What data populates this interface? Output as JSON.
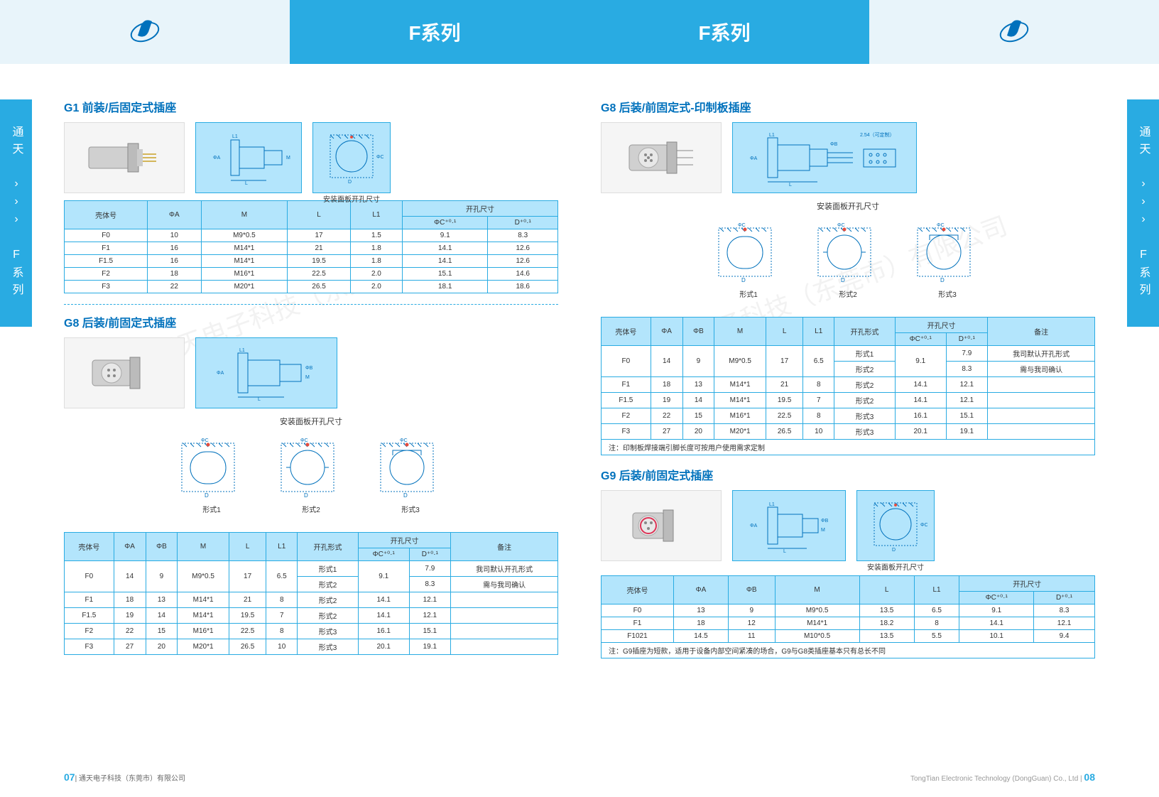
{
  "header": {
    "title_left": "F系列",
    "title_right": "F系列"
  },
  "side_tab": "通天 ››› F系列",
  "footer": {
    "left_page": "07",
    "left_company": "通天电子科技（东莞市）有限公司",
    "right_company": "TongTian Electronic Technology (DongGuan) Co., Ltd",
    "right_page": "08"
  },
  "watermark": "通天电子科技（东莞市）有限公司",
  "colors": {
    "primary": "#29abe2",
    "light": "#b3e5fc",
    "dark": "#0071bc"
  },
  "sections": {
    "g1": {
      "title": "G1 前装/后固定式插座",
      "panel_label": "安装面板开孔尺寸",
      "headers": [
        "壳体号",
        "ΦA",
        "M",
        "L",
        "L1",
        "开孔尺寸"
      ],
      "sub_headers": [
        "ΦC⁺⁰·¹",
        "D⁺⁰·¹"
      ],
      "rows": [
        [
          "F0",
          "10",
          "M9*0.5",
          "17",
          "1.5",
          "9.1",
          "8.3"
        ],
        [
          "F1",
          "16",
          "M14*1",
          "21",
          "1.8",
          "14.1",
          "12.6"
        ],
        [
          "F1.5",
          "16",
          "M14*1",
          "19.5",
          "1.8",
          "14.1",
          "12.6"
        ],
        [
          "F2",
          "18",
          "M16*1",
          "22.5",
          "2.0",
          "15.1",
          "14.6"
        ],
        [
          "F3",
          "22",
          "M20*1",
          "26.5",
          "2.0",
          "18.1",
          "18.6"
        ]
      ]
    },
    "g8_left": {
      "title": "G8 后装/前固定式插座",
      "panel_label": "安装面板开孔尺寸",
      "form_labels": [
        "形式1",
        "形式2",
        "形式3"
      ],
      "headers": [
        "壳体号",
        "ΦA",
        "ΦB",
        "M",
        "L",
        "L1",
        "开孔形式",
        "开孔尺寸",
        "备注"
      ],
      "sub_headers": [
        "ΦC⁺⁰·¹",
        "D⁺⁰·¹"
      ],
      "rows": [
        {
          "cells": [
            "F0",
            "14",
            "9",
            "M9*0.5",
            "17",
            "6.5",
            "形式1",
            "9.1",
            "7.9",
            "我司默认开孔形式"
          ],
          "rowspan_start": true
        },
        {
          "cells": [
            "形式2",
            "",
            "8.3",
            "需与我司确认"
          ],
          "continuation": true
        },
        {
          "cells": [
            "F1",
            "18",
            "13",
            "M14*1",
            "21",
            "8",
            "形式2",
            "14.1",
            "12.1",
            ""
          ]
        },
        {
          "cells": [
            "F1.5",
            "19",
            "14",
            "M14*1",
            "19.5",
            "7",
            "形式2",
            "14.1",
            "12.1",
            ""
          ]
        },
        {
          "cells": [
            "F2",
            "22",
            "15",
            "M16*1",
            "22.5",
            "8",
            "形式3",
            "16.1",
            "15.1",
            ""
          ]
        },
        {
          "cells": [
            "F3",
            "27",
            "20",
            "M20*1",
            "26.5",
            "10",
            "形式3",
            "20.1",
            "19.1",
            ""
          ]
        }
      ]
    },
    "g8_right": {
      "title": "G8 后装/前固定式-印制板插座",
      "panel_label": "安装面板开孔尺寸",
      "pitch_label": "2.54（可定制）",
      "form_labels": [
        "形式1",
        "形式2",
        "形式3"
      ],
      "headers": [
        "壳体号",
        "ΦA",
        "ΦB",
        "M",
        "L",
        "L1",
        "开孔形式",
        "开孔尺寸",
        "备注"
      ],
      "sub_headers": [
        "ΦC⁺⁰·¹",
        "D⁺⁰·¹"
      ],
      "rows": [
        {
          "cells": [
            "F0",
            "14",
            "9",
            "M9*0.5",
            "17",
            "6.5",
            "形式1",
            "9.1",
            "7.9",
            "我司默认开孔形式"
          ],
          "rowspan_start": true
        },
        {
          "cells": [
            "形式2",
            "",
            "8.3",
            "需与我司确认"
          ],
          "continuation": true
        },
        {
          "cells": [
            "F1",
            "18",
            "13",
            "M14*1",
            "21",
            "8",
            "形式2",
            "14.1",
            "12.1",
            ""
          ]
        },
        {
          "cells": [
            "F1.5",
            "19",
            "14",
            "M14*1",
            "19.5",
            "7",
            "形式2",
            "14.1",
            "12.1",
            ""
          ]
        },
        {
          "cells": [
            "F2",
            "22",
            "15",
            "M16*1",
            "22.5",
            "8",
            "形式3",
            "16.1",
            "15.1",
            ""
          ]
        },
        {
          "cells": [
            "F3",
            "27",
            "20",
            "M20*1",
            "26.5",
            "10",
            "形式3",
            "20.1",
            "19.1",
            ""
          ]
        }
      ],
      "note": "注：印制板焊接端引脚长度可按用户使用需求定制"
    },
    "g9": {
      "title": "G9 后装/前固定式插座",
      "panel_label": "安装面板开孔尺寸",
      "headers": [
        "壳体号",
        "ΦA",
        "ΦB",
        "M",
        "L",
        "L1",
        "开孔尺寸"
      ],
      "sub_headers": [
        "ΦC⁺⁰·¹",
        "D⁺⁰·¹"
      ],
      "rows": [
        [
          "F0",
          "13",
          "9",
          "M9*0.5",
          "13.5",
          "6.5",
          "9.1",
          "8.3"
        ],
        [
          "F1",
          "18",
          "12",
          "M14*1",
          "18.2",
          "8",
          "14.1",
          "12.1"
        ],
        [
          "F1021",
          "14.5",
          "11",
          "M10*0.5",
          "13.5",
          "5.5",
          "10.1",
          "9.4"
        ]
      ],
      "note": "注：G9插座为短款，适用于设备内部空间紧凑的场合，G9与G8类插座基本只有总长不同"
    }
  }
}
